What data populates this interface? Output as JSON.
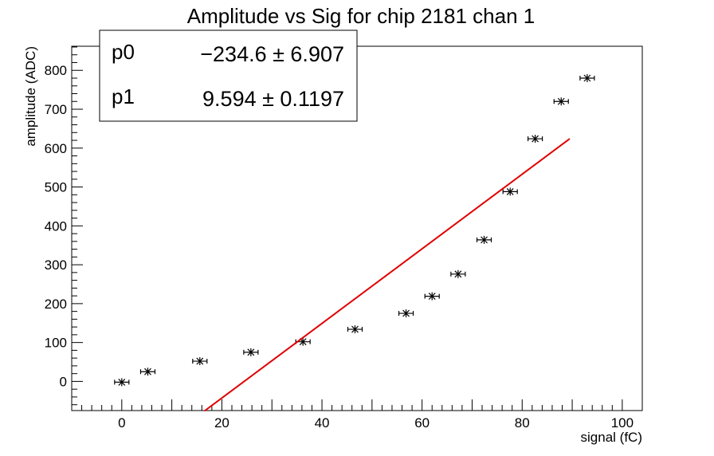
{
  "chart_data": {
    "type": "scatter",
    "title": "Amplitude vs Sig for chip 2181 chan 1",
    "xlabel": "signal (fC)",
    "ylabel": "amplitude (ADC)",
    "xlim": [
      -10,
      104
    ],
    "ylim": [
      -75,
      862
    ],
    "x_ticks": [
      0,
      20,
      40,
      60,
      80,
      100
    ],
    "y_ticks": [
      0,
      100,
      200,
      300,
      400,
      500,
      600,
      700,
      800
    ],
    "grid": false,
    "points": [
      {
        "x": 0,
        "y": -2
      },
      {
        "x": 5.2,
        "y": 25
      },
      {
        "x": 15.6,
        "y": 52
      },
      {
        "x": 25.8,
        "y": 75
      },
      {
        "x": 36.2,
        "y": 102
      },
      {
        "x": 46.6,
        "y": 134
      },
      {
        "x": 56.8,
        "y": 175
      },
      {
        "x": 62.0,
        "y": 219
      },
      {
        "x": 67.2,
        "y": 276
      },
      {
        "x": 72.4,
        "y": 364
      },
      {
        "x": 77.6,
        "y": 488
      },
      {
        "x": 82.6,
        "y": 624
      },
      {
        "x": 87.8,
        "y": 720
      },
      {
        "x": 93.0,
        "y": 780
      }
    ],
    "fit": {
      "p0": -234.6,
      "p1": 9.594,
      "x_range": [
        16.5,
        89.5
      ],
      "color": "#e00000"
    },
    "stats_box": {
      "rows": [
        {
          "name": "p0",
          "value": "−234.6 ± 6.907"
        },
        {
          "name": "p1",
          "value": "9.594 ± 0.1197"
        }
      ]
    }
  }
}
